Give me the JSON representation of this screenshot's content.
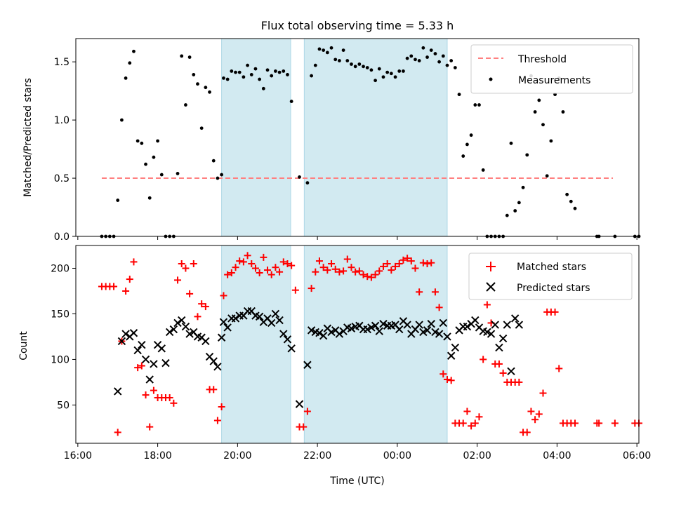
{
  "title": "Flux total observing time = 5.33 h",
  "x_axis": {
    "label": "Time (UTC)",
    "ticks": [
      "16:00",
      "18:00",
      "20:00",
      "22:00",
      "00:00",
      "02:00",
      "04:00",
      "06:00"
    ]
  },
  "colors": {
    "threshold": "#ff8080",
    "measurements": "#000000",
    "matched": "#ff0000",
    "predicted": "#000000",
    "observing_band": "#add8e6"
  },
  "chart_data": [
    {
      "type": "scatter",
      "ylabel": "Matched/Predicted stars",
      "ylim": [
        0,
        1.7
      ],
      "yticks": [
        "0.0",
        "0.5",
        "1.0",
        "1.5"
      ],
      "xlim_hours": [
        15.95,
        30.05
      ],
      "observing_windows_hours": [
        [
          19.6,
          21.33
        ],
        [
          21.67,
          25.25
        ]
      ],
      "threshold": {
        "name": "Threshold",
        "value": 0.5,
        "x_range_hours": [
          16.6,
          29.4
        ]
      },
      "legend": {
        "position": "top-right",
        "entries": [
          "Threshold",
          "Measurements"
        ]
      },
      "series": [
        {
          "name": "Measurements",
          "x_hours": [
            16.6,
            16.7,
            16.8,
            16.9,
            17.0,
            17.1,
            17.2,
            17.3,
            17.4,
            17.5,
            17.6,
            17.7,
            17.8,
            17.9,
            18.0,
            18.1,
            18.2,
            18.3,
            18.4,
            18.5,
            18.6,
            18.7,
            18.8,
            18.9,
            19.0,
            19.1,
            19.2,
            19.3,
            19.4,
            19.5,
            19.6,
            19.65,
            19.75,
            19.85,
            19.95,
            20.05,
            20.15,
            20.25,
            20.35,
            20.45,
            20.55,
            20.65,
            20.75,
            20.85,
            20.95,
            21.05,
            21.15,
            21.25,
            21.35,
            21.55,
            21.75,
            21.85,
            21.95,
            22.05,
            22.15,
            22.25,
            22.35,
            22.45,
            22.55,
            22.65,
            22.75,
            22.85,
            22.95,
            23.05,
            23.15,
            23.25,
            23.35,
            23.45,
            23.55,
            23.65,
            23.75,
            23.85,
            23.95,
            24.05,
            24.15,
            24.25,
            24.35,
            24.45,
            24.55,
            24.65,
            24.75,
            24.85,
            24.95,
            25.05,
            25.15,
            25.25,
            25.35,
            25.45,
            25.55,
            25.65,
            25.75,
            25.85,
            25.95,
            26.05,
            26.15,
            26.25,
            26.35,
            26.45,
            26.55,
            26.65,
            26.75,
            26.85,
            26.95,
            27.05,
            27.15,
            27.25,
            27.35,
            27.45,
            27.55,
            27.65,
            27.75,
            27.85,
            27.95,
            28.05,
            28.15,
            28.25,
            28.35,
            28.45,
            29.0,
            29.05,
            29.45,
            29.95,
            30.05
          ],
          "y": [
            0,
            0,
            0,
            0,
            0.31,
            1.0,
            1.36,
            1.49,
            1.59,
            0.82,
            0.8,
            0.62,
            0.33,
            0.68,
            0.82,
            0.53,
            0,
            0,
            0,
            0.54,
            1.55,
            1.13,
            1.54,
            1.39,
            1.31,
            0.93,
            1.28,
            1.24,
            0.65,
            0.5,
            0.53,
            1.36,
            1.35,
            1.42,
            1.41,
            1.41,
            1.37,
            1.47,
            1.39,
            1.44,
            1.35,
            1.27,
            1.43,
            1.38,
            1.42,
            1.41,
            1.42,
            1.39,
            1.16,
            0.51,
            0.46,
            1.38,
            1.47,
            1.61,
            1.6,
            1.58,
            1.62,
            1.52,
            1.51,
            1.6,
            1.51,
            1.48,
            1.46,
            1.48,
            1.46,
            1.45,
            1.43,
            1.34,
            1.44,
            1.37,
            1.41,
            1.4,
            1.37,
            1.42,
            1.42,
            1.53,
            1.55,
            1.52,
            1.51,
            1.62,
            1.54,
            1.6,
            1.57,
            1.5,
            1.55,
            1.47,
            1.51,
            1.45,
            1.22,
            0.69,
            0.79,
            0.87,
            1.13,
            1.13,
            0.57,
            0,
            0,
            0,
            0,
            0,
            0.18,
            0.8,
            0.22,
            0.29,
            0.42,
            0.7,
            1.38,
            1.07,
            1.17,
            0.96,
            0.52,
            0.82,
            1.22,
            1.36,
            1.07,
            0.36,
            0.3,
            0.24,
            0,
            0,
            0,
            0,
            0
          ]
        }
      ]
    },
    {
      "type": "scatter",
      "ylabel": "Count",
      "ylim": [
        8,
        225
      ],
      "yticks": [
        "50",
        "100",
        "150",
        "200"
      ],
      "xlim_hours": [
        15.95,
        30.05
      ],
      "observing_windows_hours": [
        [
          19.6,
          21.33
        ],
        [
          21.67,
          25.25
        ]
      ],
      "legend": {
        "position": "top-right",
        "entries": [
          "Matched stars",
          "Predicted stars"
        ]
      },
      "series": [
        {
          "name": "Matched stars",
          "marker": "+",
          "x_hours": [
            16.6,
            16.7,
            16.8,
            16.9,
            17.0,
            17.1,
            17.2,
            17.3,
            17.4,
            17.5,
            17.6,
            17.7,
            17.8,
            17.9,
            18.0,
            18.1,
            18.2,
            18.3,
            18.4,
            18.5,
            18.6,
            18.7,
            18.8,
            18.9,
            19.0,
            19.1,
            19.2,
            19.3,
            19.4,
            19.5,
            19.6,
            19.65,
            19.75,
            19.85,
            19.95,
            20.05,
            20.15,
            20.25,
            20.35,
            20.45,
            20.55,
            20.65,
            20.75,
            20.85,
            20.95,
            21.05,
            21.15,
            21.25,
            21.35,
            21.45,
            21.55,
            21.65,
            21.75,
            21.85,
            21.95,
            22.05,
            22.15,
            22.25,
            22.35,
            22.45,
            22.55,
            22.65,
            22.75,
            22.85,
            22.95,
            23.05,
            23.15,
            23.25,
            23.35,
            23.45,
            23.55,
            23.65,
            23.75,
            23.85,
            23.95,
            24.05,
            24.15,
            24.25,
            24.35,
            24.45,
            24.55,
            24.65,
            24.75,
            24.85,
            24.95,
            25.05,
            25.15,
            25.25,
            25.35,
            25.45,
            25.55,
            25.65,
            25.75,
            25.85,
            25.95,
            26.05,
            26.15,
            26.25,
            26.35,
            26.45,
            26.55,
            26.65,
            26.75,
            26.85,
            26.95,
            27.05,
            27.15,
            27.25,
            27.35,
            27.45,
            27.55,
            27.65,
            27.75,
            27.85,
            27.95,
            28.05,
            28.15,
            28.25,
            28.35,
            28.45,
            29.0,
            29.05,
            29.45,
            29.95,
            30.05
          ],
          "y": [
            180,
            180,
            180,
            180,
            20,
            120,
            175,
            188,
            207,
            91,
            93,
            61,
            26,
            66,
            58,
            58,
            58,
            58,
            52,
            187,
            205,
            200,
            172,
            205,
            147,
            161,
            158,
            67,
            67,
            33,
            48,
            170,
            193,
            195,
            201,
            208,
            207,
            214,
            205,
            200,
            195,
            212,
            198,
            193,
            201,
            196,
            207,
            205,
            203,
            176,
            26,
            26,
            43,
            178,
            196,
            208,
            201,
            198,
            205,
            199,
            196,
            197,
            210,
            201,
            196,
            197,
            193,
            191,
            190,
            193,
            197,
            202,
            205,
            198,
            202,
            205,
            209,
            211,
            208,
            200,
            174,
            206,
            205,
            206,
            174,
            157,
            84,
            78,
            77,
            30,
            30,
            30,
            43,
            27,
            30,
            37,
            100,
            160,
            140,
            95,
            95,
            85,
            75,
            75,
            75,
            75,
            20,
            20,
            43,
            34,
            40,
            63,
            152,
            152,
            152,
            90,
            30,
            30,
            30,
            30,
            30,
            30,
            30,
            30,
            30
          ],
          "note_correction": "matched stars x/y pairs follow the plotted + markers left to right"
        },
        {
          "name": "Predicted stars",
          "marker": "x",
          "x_hours": [
            17.0,
            17.1,
            17.2,
            17.3,
            17.4,
            17.5,
            17.6,
            17.7,
            17.8,
            17.9,
            18.0,
            18.1,
            18.2,
            18.3,
            18.4,
            18.5,
            18.6,
            18.7,
            18.8,
            18.9,
            19.0,
            19.1,
            19.2,
            19.3,
            19.4,
            19.5,
            19.6,
            19.65,
            19.75,
            19.85,
            19.95,
            20.05,
            20.15,
            20.25,
            20.35,
            20.45,
            20.55,
            20.65,
            20.75,
            20.85,
            20.95,
            21.05,
            21.15,
            21.25,
            21.35,
            21.55,
            21.75,
            21.85,
            21.95,
            22.05,
            22.15,
            22.25,
            22.35,
            22.45,
            22.55,
            22.65,
            22.75,
            22.85,
            22.95,
            23.05,
            23.15,
            23.25,
            23.35,
            23.45,
            23.55,
            23.65,
            23.75,
            23.85,
            23.95,
            24.05,
            24.15,
            24.25,
            24.35,
            24.45,
            24.55,
            24.65,
            24.75,
            24.85,
            24.95,
            25.05,
            25.15,
            25.25,
            25.35,
            25.45,
            25.55,
            25.65,
            25.75,
            25.85,
            25.95,
            26.05,
            26.15,
            26.25,
            26.35,
            26.45,
            26.55,
            26.65,
            26.75,
            26.85,
            26.95,
            27.05
          ],
          "y": [
            65,
            120,
            128,
            125,
            129,
            110,
            116,
            100,
            78,
            95,
            116,
            112,
            96,
            130,
            133,
            140,
            143,
            136,
            128,
            130,
            125,
            124,
            120,
            103,
            98,
            92,
            124,
            141,
            135,
            145,
            145,
            148,
            148,
            153,
            153,
            148,
            147,
            141,
            145,
            140,
            150,
            143,
            128,
            122,
            112,
            51,
            94,
            132,
            130,
            129,
            126,
            134,
            130,
            132,
            128,
            131,
            135,
            134,
            136,
            137,
            133,
            133,
            135,
            137,
            131,
            139,
            137,
            137,
            138,
            133,
            142,
            138,
            128,
            133,
            138,
            130,
            132,
            139,
            130,
            128,
            140,
            125,
            104,
            113,
            132,
            136,
            136,
            139,
            143,
            135,
            131,
            130,
            128,
            138,
            113,
            123,
            138,
            87,
            145,
            138
          ],
          "note_correction": "predicted stars x/y pairs follow the plotted x markers left to right"
        }
      ]
    }
  ]
}
